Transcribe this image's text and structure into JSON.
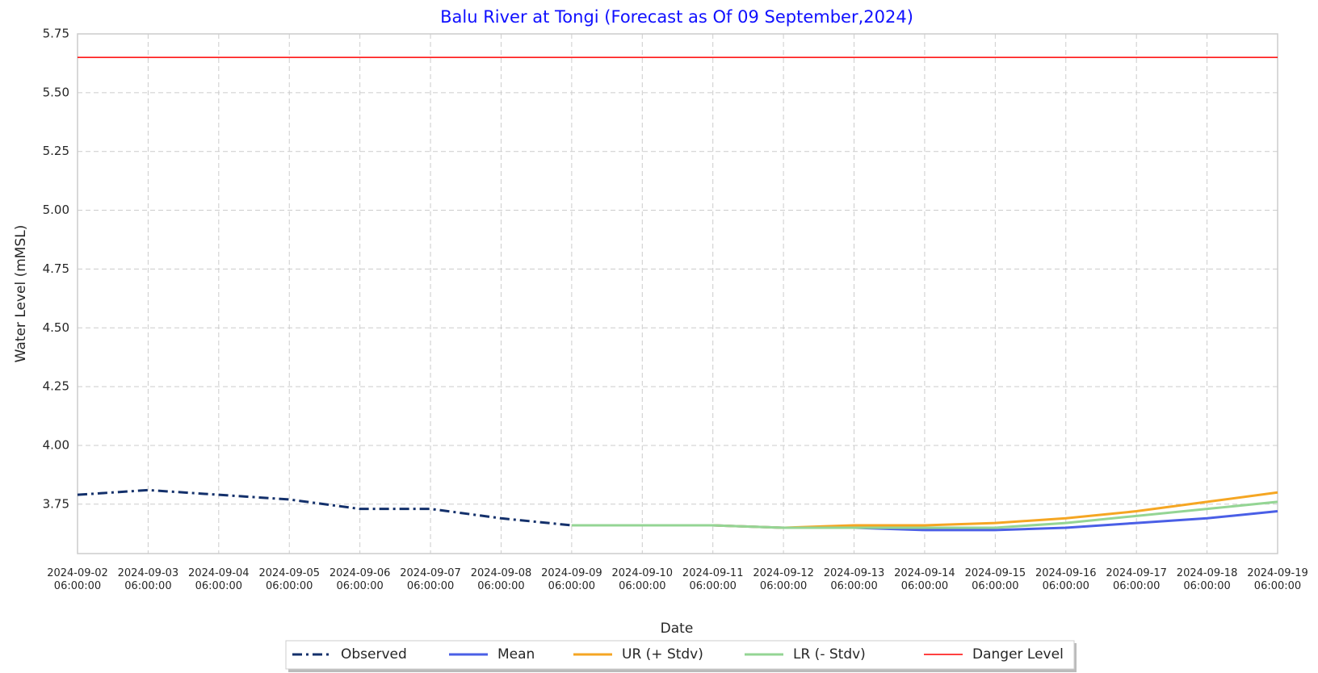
{
  "chart_data": {
    "type": "line",
    "title": "Balu River at Tongi (Forecast as Of 09 September,2024)",
    "x_label": "Date",
    "y_label": "Water Level (mMSL)",
    "x": [
      "2024-09-02 06:00:00",
      "2024-09-03 06:00:00",
      "2024-09-04 06:00:00",
      "2024-09-05 06:00:00",
      "2024-09-06 06:00:00",
      "2024-09-07 06:00:00",
      "2024-09-08 06:00:00",
      "2024-09-09 06:00:00",
      "2024-09-10 06:00:00",
      "2024-09-11 06:00:00",
      "2024-09-12 06:00:00",
      "2024-09-13 06:00:00",
      "2024-09-14 06:00:00",
      "2024-09-15 06:00:00",
      "2024-09-16 06:00:00",
      "2024-09-17 06:00:00",
      "2024-09-18 06:00:00",
      "2024-09-19 06:00:00"
    ],
    "series": [
      {
        "name": "Observed",
        "color": "#13306b",
        "linestyle": "dashdot",
        "values": [
          3.79,
          3.81,
          3.79,
          3.77,
          3.73,
          3.73,
          3.69,
          3.66,
          null,
          null,
          null,
          null,
          null,
          null,
          null,
          null,
          null,
          null
        ]
      },
      {
        "name": "Mean",
        "color": "#4a5fe6",
        "linestyle": "solid",
        "values": [
          null,
          null,
          null,
          null,
          null,
          null,
          null,
          3.66,
          3.66,
          3.66,
          3.65,
          3.65,
          3.64,
          3.64,
          3.65,
          3.67,
          3.69,
          3.72
        ]
      },
      {
        "name": "UR (+ Stdv)",
        "color": "#f5a623",
        "linestyle": "solid",
        "values": [
          null,
          null,
          null,
          null,
          null,
          null,
          null,
          3.66,
          3.66,
          3.66,
          3.65,
          3.66,
          3.66,
          3.67,
          3.69,
          3.72,
          3.76,
          3.8
        ]
      },
      {
        "name": "LR (- Stdv)",
        "color": "#94d594",
        "linestyle": "solid",
        "values": [
          null,
          null,
          null,
          null,
          null,
          null,
          null,
          3.66,
          3.66,
          3.66,
          3.65,
          3.65,
          3.65,
          3.65,
          3.67,
          3.7,
          3.73,
          3.76
        ]
      },
      {
        "name": "Danger Level",
        "color": "#ff0000",
        "linestyle": "thin",
        "values": [
          5.65,
          5.65,
          5.65,
          5.65,
          5.65,
          5.65,
          5.65,
          5.65,
          5.65,
          5.65,
          5.65,
          5.65,
          5.65,
          5.65,
          5.65,
          5.65,
          5.65,
          5.65
        ]
      }
    ],
    "ylim": [
      3.54,
      5.75
    ],
    "yticks": [
      3.75,
      {
        "value": 4,
        "label": "4.00"
      },
      4.25,
      {
        "value": 4.5,
        "label": "4.50"
      },
      4.75,
      {
        "value": 5,
        "label": "5.00"
      },
      5.25,
      {
        "value": 5.5,
        "label": "5.50"
      },
      5.75
    ],
    "grid": true,
    "legend": "bottom"
  }
}
